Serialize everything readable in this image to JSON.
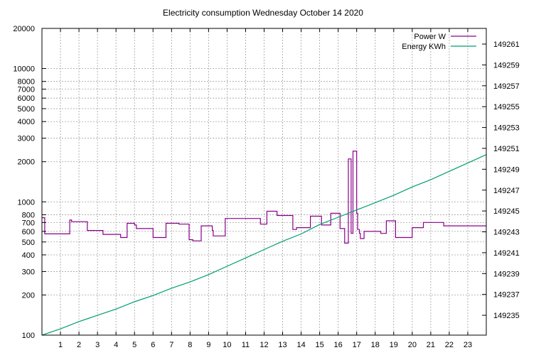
{
  "chart_data": {
    "type": "line",
    "title": "Electricity consumption Wednesday October 14 2020",
    "xlabel": "",
    "xlim": [
      0,
      24
    ],
    "x_ticks": [
      1,
      2,
      3,
      4,
      5,
      6,
      7,
      8,
      9,
      10,
      11,
      12,
      13,
      14,
      15,
      16,
      17,
      18,
      19,
      20,
      21,
      22,
      23
    ],
    "y_left": {
      "label": "",
      "scale": "log",
      "lim": [
        100,
        20000
      ],
      "ticks": [
        100,
        200,
        300,
        400,
        500,
        600,
        700,
        800,
        1000,
        2000,
        3000,
        4000,
        5000,
        6000,
        7000,
        8000,
        10000,
        20000
      ]
    },
    "y_right": {
      "label": "",
      "scale": "linear",
      "lim": [
        149233.1,
        149262.5
      ],
      "ticks": [
        149235,
        149237,
        149239,
        149241,
        149243,
        149245,
        149247,
        149249,
        149251,
        149253,
        149255,
        149257,
        149259,
        149261
      ]
    },
    "grid": true,
    "legend_position": "top-right",
    "series": [
      {
        "name": "Power W",
        "axis": "left",
        "color": "#8b008b",
        "x": [
          0,
          0.15,
          0.15,
          1.5,
          1.5,
          1.6,
          1.6,
          2.45,
          2.45,
          3.3,
          3.3,
          4.25,
          4.25,
          4.6,
          4.6,
          5.0,
          5.0,
          5.1,
          5.1,
          6.0,
          6.0,
          6.7,
          6.7,
          7.4,
          7.4,
          7.95,
          7.95,
          8.15,
          8.15,
          8.6,
          8.6,
          9.2,
          9.2,
          9.25,
          9.25,
          9.9,
          9.9,
          10.8,
          10.8,
          11.8,
          11.8,
          12.15,
          12.15,
          12.7,
          12.7,
          13.55,
          13.55,
          13.75,
          13.75,
          14.5,
          14.5,
          15.1,
          15.1,
          15.6,
          15.6,
          16.1,
          16.1,
          16.35,
          16.35,
          16.55,
          16.55,
          16.7,
          16.7,
          16.8,
          16.8,
          16.85,
          16.85,
          17.0,
          17.0,
          17.05,
          17.05,
          17.15,
          17.15,
          17.2,
          17.2,
          17.4,
          17.4,
          18.3,
          18.3,
          18.6,
          18.6,
          19.1,
          19.1,
          20.0,
          20.0,
          20.6,
          20.6,
          21.7,
          21.7,
          22.4,
          22.4,
          23.1,
          23.1,
          24.0
        ],
        "values": [
          760,
          760,
          575,
          575,
          730,
          730,
          710,
          710,
          610,
          610,
          570,
          570,
          540,
          540,
          690,
          690,
          670,
          670,
          630,
          630,
          540,
          540,
          690,
          690,
          680,
          680,
          520,
          520,
          510,
          510,
          660,
          660,
          610,
          610,
          555,
          555,
          750,
          750,
          750,
          750,
          680,
          680,
          850,
          850,
          790,
          790,
          620,
          620,
          640,
          640,
          780,
          780,
          670,
          670,
          820,
          820,
          630,
          630,
          490,
          490,
          2100,
          2100,
          580,
          580,
          2400,
          2400,
          2400,
          2400,
          820,
          820,
          620,
          620,
          580,
          580,
          530,
          530,
          600,
          600,
          580,
          580,
          720,
          720,
          540,
          540,
          640,
          640,
          700,
          700,
          660,
          660,
          660,
          660,
          660,
          660
        ]
      },
      {
        "name": "Energy KWh",
        "axis": "right",
        "color": "#009e73",
        "x": [
          0,
          1,
          2,
          3,
          4,
          5,
          6,
          7,
          8,
          9,
          10,
          11,
          12,
          13,
          14,
          15,
          16,
          17,
          18,
          19,
          20,
          21,
          22,
          23,
          24
        ],
        "values": [
          149233.1,
          149233.7,
          149234.4,
          149235.0,
          149235.6,
          149236.3,
          149236.9,
          149237.6,
          149238.2,
          149238.9,
          149239.7,
          149240.5,
          149241.3,
          149242.1,
          149242.8,
          149243.7,
          149244.4,
          149245.1,
          149245.8,
          149246.5,
          149247.3,
          149248.0,
          149248.8,
          149249.6,
          149250.4
        ]
      }
    ]
  }
}
